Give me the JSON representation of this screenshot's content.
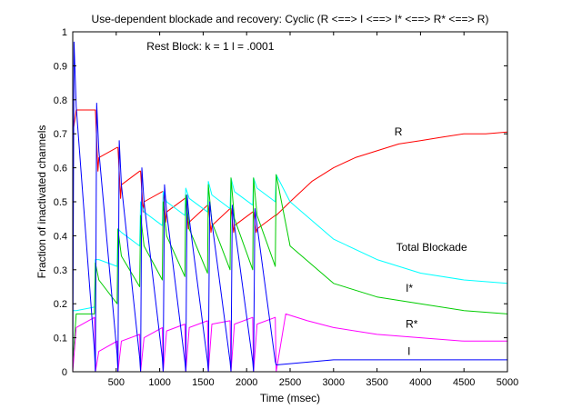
{
  "chart_data": {
    "type": "line",
    "title": "Use-dependent blockade and recovery:  Cyclic (R <==> I <==> I* <==> R* <==> R)",
    "xlabel": "Time (msec)",
    "ylabel": "Fraction of inactivated channels",
    "xlim": [
      0,
      5000
    ],
    "ylim": [
      0,
      1
    ],
    "xticks": [
      500,
      1000,
      1500,
      2000,
      2500,
      3000,
      3500,
      4000,
      4500,
      5000
    ],
    "yticks": [
      0,
      0.1,
      0.2,
      0.3,
      0.4,
      0.5,
      0.6,
      0.7,
      0.8,
      0.9,
      1
    ],
    "grid": false,
    "annotations": [
      {
        "id": "rest-block",
        "text": "Rest Block:  k = 1  l = .0001",
        "x": 850,
        "y": 0.947
      },
      {
        "id": "label-r",
        "text": "R",
        "x": 3700,
        "y": 0.695
      },
      {
        "id": "label-total",
        "text": "Total Blockade",
        "x": 3720,
        "y": 0.355
      },
      {
        "id": "label-istar",
        "text": "I*",
        "x": 3830,
        "y": 0.235
      },
      {
        "id": "label-rstar",
        "text": "R*",
        "x": 3830,
        "y": 0.13
      },
      {
        "id": "label-i",
        "text": "I",
        "x": 3850,
        "y": 0.05
      }
    ],
    "pulse_times": [
      0,
      260,
      520,
      780,
      1040,
      1300,
      1560,
      1820,
      2080,
      2340
    ],
    "series": [
      {
        "name": "R",
        "color": "#ff0000",
        "x": [
          0,
          40,
          250,
          260,
          290,
          300,
          510,
          520,
          550,
          560,
          770,
          780,
          810,
          820,
          1030,
          1040,
          1070,
          1080,
          1290,
          1300,
          1330,
          1340,
          1550,
          1560,
          1590,
          1600,
          1810,
          1820,
          1850,
          1860,
          2070,
          2080,
          2110,
          2120,
          2330,
          2340,
          2500,
          2750,
          3000,
          3250,
          3500,
          3750,
          4000,
          4250,
          4500,
          4750,
          5000
        ],
        "values": [
          0.7,
          0.77,
          0.77,
          0.77,
          0.59,
          0.63,
          0.66,
          0.66,
          0.51,
          0.55,
          0.59,
          0.59,
          0.47,
          0.5,
          0.53,
          0.53,
          0.44,
          0.47,
          0.51,
          0.51,
          0.42,
          0.44,
          0.49,
          0.49,
          0.41,
          0.43,
          0.48,
          0.48,
          0.41,
          0.43,
          0.47,
          0.47,
          0.41,
          0.42,
          0.46,
          0.46,
          0.5,
          0.56,
          0.6,
          0.63,
          0.65,
          0.67,
          0.68,
          0.69,
          0.7,
          0.7,
          0.705
        ]
      },
      {
        "name": "Total Blockade",
        "color": "#00ffff",
        "x": [
          0,
          40,
          250,
          260,
          300,
          510,
          520,
          560,
          770,
          780,
          820,
          1030,
          1040,
          1080,
          1290,
          1300,
          1340,
          1550,
          1560,
          1600,
          1810,
          1820,
          1860,
          2070,
          2080,
          2120,
          2330,
          2340,
          2500,
          3000,
          3500,
          4000,
          4500,
          5000
        ],
        "values": [
          0.18,
          0.18,
          0.19,
          0.33,
          0.33,
          0.31,
          0.42,
          0.41,
          0.37,
          0.5,
          0.47,
          0.43,
          0.53,
          0.5,
          0.46,
          0.54,
          0.51,
          0.47,
          0.56,
          0.52,
          0.48,
          0.57,
          0.53,
          0.49,
          0.57,
          0.54,
          0.5,
          0.58,
          0.5,
          0.39,
          0.33,
          0.29,
          0.27,
          0.26
        ]
      },
      {
        "name": "I*",
        "color": "#00cc00",
        "x": [
          0,
          40,
          250,
          260,
          300,
          510,
          520,
          560,
          770,
          780,
          820,
          1030,
          1040,
          1080,
          1290,
          1300,
          1340,
          1550,
          1560,
          1600,
          1810,
          1820,
          1860,
          2070,
          2080,
          2120,
          2330,
          2340,
          2500,
          3000,
          3500,
          4000,
          4500,
          5000
        ],
        "values": [
          0.03,
          0.17,
          0.17,
          0.32,
          0.27,
          0.2,
          0.42,
          0.34,
          0.25,
          0.46,
          0.37,
          0.27,
          0.5,
          0.4,
          0.28,
          0.52,
          0.42,
          0.29,
          0.55,
          0.44,
          0.3,
          0.57,
          0.45,
          0.3,
          0.57,
          0.46,
          0.31,
          0.58,
          0.37,
          0.26,
          0.22,
          0.2,
          0.18,
          0.17
        ]
      },
      {
        "name": "R*",
        "color": "#ff00ff",
        "x": [
          0,
          40,
          250,
          260,
          300,
          510,
          520,
          560,
          770,
          780,
          820,
          1030,
          1040,
          1080,
          1290,
          1300,
          1340,
          1550,
          1560,
          1600,
          1810,
          1820,
          1860,
          2070,
          2080,
          2120,
          2330,
          2340,
          2450,
          2700,
          3000,
          3500,
          4000,
          4500,
          5000
        ],
        "values": [
          0,
          0.13,
          0.16,
          0,
          0.06,
          0.09,
          0,
          0.09,
          0.11,
          0,
          0.1,
          0.13,
          0,
          0.12,
          0.14,
          0,
          0.13,
          0.15,
          0,
          0.14,
          0.15,
          0,
          0.14,
          0.16,
          0,
          0.14,
          0.16,
          0,
          0.17,
          0.15,
          0.13,
          0.11,
          0.1,
          0.09,
          0.09
        ]
      },
      {
        "name": "I",
        "color": "#0000ff",
        "x": [
          0,
          15,
          40,
          250,
          260,
          275,
          300,
          510,
          520,
          535,
          560,
          770,
          780,
          795,
          820,
          1030,
          1040,
          1055,
          1080,
          1290,
          1300,
          1315,
          1340,
          1550,
          1560,
          1575,
          1600,
          1810,
          1820,
          1835,
          1860,
          2070,
          2080,
          2095,
          2120,
          2330,
          2340,
          3000,
          4000,
          5000
        ],
        "values": [
          0,
          0.97,
          0.78,
          0.06,
          0,
          0.79,
          0.65,
          0.05,
          0,
          0.68,
          0.55,
          0.04,
          0,
          0.6,
          0.5,
          0.04,
          0,
          0.55,
          0.47,
          0.03,
          0,
          0.52,
          0.45,
          0.03,
          0,
          0.5,
          0.44,
          0.03,
          0,
          0.49,
          0.43,
          0.03,
          0,
          0.48,
          0.43,
          0.03,
          0.02,
          0.035,
          0.035,
          0.035
        ]
      }
    ]
  }
}
